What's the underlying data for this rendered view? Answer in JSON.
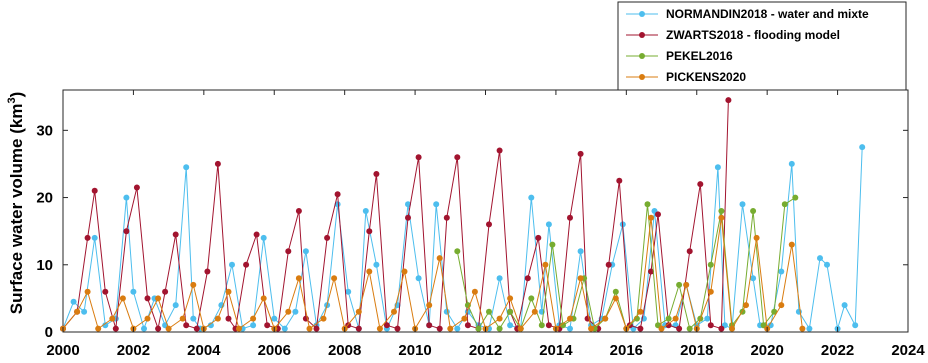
{
  "chart_data": {
    "type": "line",
    "ylabel": "Surface water volume (km",
    "ylabel_sup": "3",
    "ylabel_close": ")",
    "xlim": [
      2000,
      2024
    ],
    "ylim": [
      0,
      36
    ],
    "xticks": [
      2000,
      2002,
      2004,
      2006,
      2008,
      2010,
      2012,
      2014,
      2016,
      2018,
      2020,
      2022,
      2024
    ],
    "yticks": [
      0,
      10,
      20,
      30
    ],
    "grid": false,
    "legend_position": "top-right",
    "series": [
      {
        "name": "NORMANDIN2018 - water and mixte",
        "color": "#4dbeee",
        "x": [
          2000.0,
          2000.3,
          2000.6,
          2000.9,
          2001.2,
          2001.5,
          2001.8,
          2002.0,
          2002.3,
          2002.6,
          2002.9,
          2003.2,
          2003.5,
          2003.7,
          2003.9,
          2004.2,
          2004.5,
          2004.8,
          2005.1,
          2005.4,
          2005.7,
          2006.0,
          2006.3,
          2006.6,
          2006.9,
          2007.2,
          2007.5,
          2007.8,
          2008.1,
          2008.4,
          2008.6,
          2008.9,
          2009.2,
          2009.5,
          2009.8,
          2010.1,
          2010.4,
          2010.6,
          2010.9,
          2011.2,
          2011.5,
          2011.8,
          2012.1,
          2012.4,
          2012.7,
          2013.0,
          2013.3,
          2013.6,
          2013.8,
          2014.1,
          2014.4,
          2014.7,
          2015.0,
          2015.3,
          2015.6,
          2015.9,
          2016.2,
          2016.5,
          2016.8,
          2017.1,
          2017.4,
          2017.7,
          2018.0,
          2018.3,
          2018.6,
          2018.8,
          2019.0,
          2019.3,
          2019.6,
          2019.8,
          2020.1,
          2020.4,
          2020.7,
          2020.9,
          2021.2,
          2021.5,
          2021.7,
          2022.0,
          2022.2,
          2022.5,
          2022.7
        ],
        "y": [
          0.5,
          4.5,
          3,
          14,
          1,
          2,
          20,
          6,
          0.5,
          5,
          1,
          4,
          24.5,
          2,
          0.5,
          1,
          4,
          10,
          0.5,
          1,
          14,
          2,
          0.5,
          3,
          12,
          1,
          4,
          19,
          6,
          0.5,
          18,
          10,
          0.5,
          4,
          19,
          8,
          1,
          19,
          3,
          0.5,
          3,
          1,
          0.5,
          8,
          1,
          0.5,
          20,
          3,
          16,
          1,
          0.5,
          12,
          1,
          2,
          10,
          16,
          0.5,
          2,
          18,
          1,
          1,
          7,
          1,
          2,
          24.5,
          1,
          0.5,
          19,
          8,
          1,
          1,
          9,
          25,
          3,
          0.5,
          11,
          10,
          0.5,
          4,
          1,
          27.5
        ]
      },
      {
        "name": "ZWARTS2018 - flooding model",
        "color": "#a2142f",
        "x": [
          2000.0,
          2000.4,
          2000.7,
          2000.9,
          2001.2,
          2001.5,
          2001.8,
          2002.1,
          2002.4,
          2002.7,
          2002.9,
          2003.2,
          2003.5,
          2003.8,
          2004.1,
          2004.4,
          2004.7,
          2004.9,
          2005.2,
          2005.5,
          2005.8,
          2006.1,
          2006.4,
          2006.7,
          2006.9,
          2007.2,
          2007.5,
          2007.8,
          2008.1,
          2008.4,
          2008.7,
          2008.9,
          2009.2,
          2009.5,
          2009.8,
          2010.1,
          2010.4,
          2010.7,
          2010.9,
          2011.2,
          2011.5,
          2011.8,
          2012.1,
          2012.4,
          2012.7,
          2012.9,
          2013.2,
          2013.5,
          2013.8,
          2014.1,
          2014.4,
          2014.7,
          2014.9,
          2015.2,
          2015.5,
          2015.8,
          2016.1,
          2016.4,
          2016.7,
          2016.9,
          2017.2,
          2017.5,
          2017.8,
          2018.1,
          2018.4,
          2018.7,
          2018.9
        ],
        "y": [
          0.5,
          3,
          14,
          21,
          6,
          0.5,
          15,
          21.5,
          5,
          0.5,
          6,
          14.5,
          1,
          0.5,
          9,
          25,
          2,
          0.5,
          10,
          14.5,
          1,
          0.5,
          12,
          18,
          2,
          0.5,
          14,
          20.5,
          1,
          0.5,
          15,
          23.5,
          1,
          0.5,
          17,
          26,
          1,
          0.5,
          17,
          26,
          1,
          0.5,
          16,
          27,
          3,
          0.5,
          8,
          14,
          1,
          0.5,
          17,
          26.5,
          2,
          0.5,
          10,
          22.5,
          1,
          0.5,
          9,
          17.5,
          1,
          0.5,
          12,
          22,
          1,
          0.5,
          34.5
        ]
      },
      {
        "name": "PEKEL2016",
        "color": "#77ac30",
        "x": [
          2011.2,
          2011.5,
          2011.8,
          2012.1,
          2012.4,
          2012.7,
          2013.0,
          2013.3,
          2013.6,
          2013.9,
          2014.2,
          2014.5,
          2014.8,
          2015.1,
          2015.4,
          2015.7,
          2016.0,
          2016.3,
          2016.6,
          2016.9,
          2017.2,
          2017.5,
          2017.8,
          2018.1,
          2018.4,
          2018.7,
          2019.0,
          2019.3,
          2019.6,
          2019.9,
          2020.2,
          2020.5,
          2020.8
        ],
        "y": [
          12,
          4,
          0.5,
          3,
          0.5,
          3,
          0.5,
          5,
          1,
          13,
          1,
          2,
          8,
          0.5,
          2,
          6,
          0.5,
          2,
          19,
          1,
          2,
          7,
          0.5,
          2,
          10,
          18,
          1,
          3,
          18,
          1,
          3,
          19,
          20
        ]
      },
      {
        "name": "PICKENS2020",
        "color": "#d97c10",
        "x": [
          2000.0,
          2000.4,
          2000.7,
          2001.0,
          2001.4,
          2001.7,
          2002.0,
          2002.4,
          2002.7,
          2003.0,
          2003.4,
          2003.7,
          2004.0,
          2004.4,
          2004.7,
          2005.0,
          2005.4,
          2005.7,
          2006.0,
          2006.4,
          2006.7,
          2007.0,
          2007.4,
          2007.7,
          2008.0,
          2008.4,
          2008.7,
          2009.0,
          2009.4,
          2009.7,
          2010.0,
          2010.4,
          2010.7,
          2011.0,
          2011.4,
          2011.7,
          2012.0,
          2012.4,
          2012.7,
          2013.0,
          2013.4,
          2013.7,
          2014.0,
          2014.4,
          2014.7,
          2015.0,
          2015.4,
          2015.7,
          2016.0,
          2016.4,
          2016.7,
          2017.0,
          2017.4,
          2017.7,
          2018.0,
          2018.4,
          2018.7,
          2019.0,
          2019.4,
          2019.7,
          2020.0,
          2020.4,
          2020.7,
          2021.0
        ],
        "y": [
          0.5,
          3,
          6,
          0.5,
          2,
          5,
          0.5,
          2,
          5,
          0.5,
          2,
          7,
          0.5,
          2,
          6,
          0.5,
          2,
          5,
          0.5,
          3,
          8,
          0.5,
          2,
          8,
          0.5,
          3,
          9,
          0.5,
          3,
          9,
          0.5,
          4,
          11,
          0.5,
          2,
          6,
          0.5,
          2,
          5,
          0.5,
          3,
          10,
          0.5,
          2,
          8,
          0.5,
          2,
          5,
          0.5,
          3,
          17,
          0.5,
          2,
          7,
          0.5,
          6,
          17,
          0.5,
          4,
          14,
          0.5,
          4,
          13,
          0.5
        ]
      }
    ]
  }
}
